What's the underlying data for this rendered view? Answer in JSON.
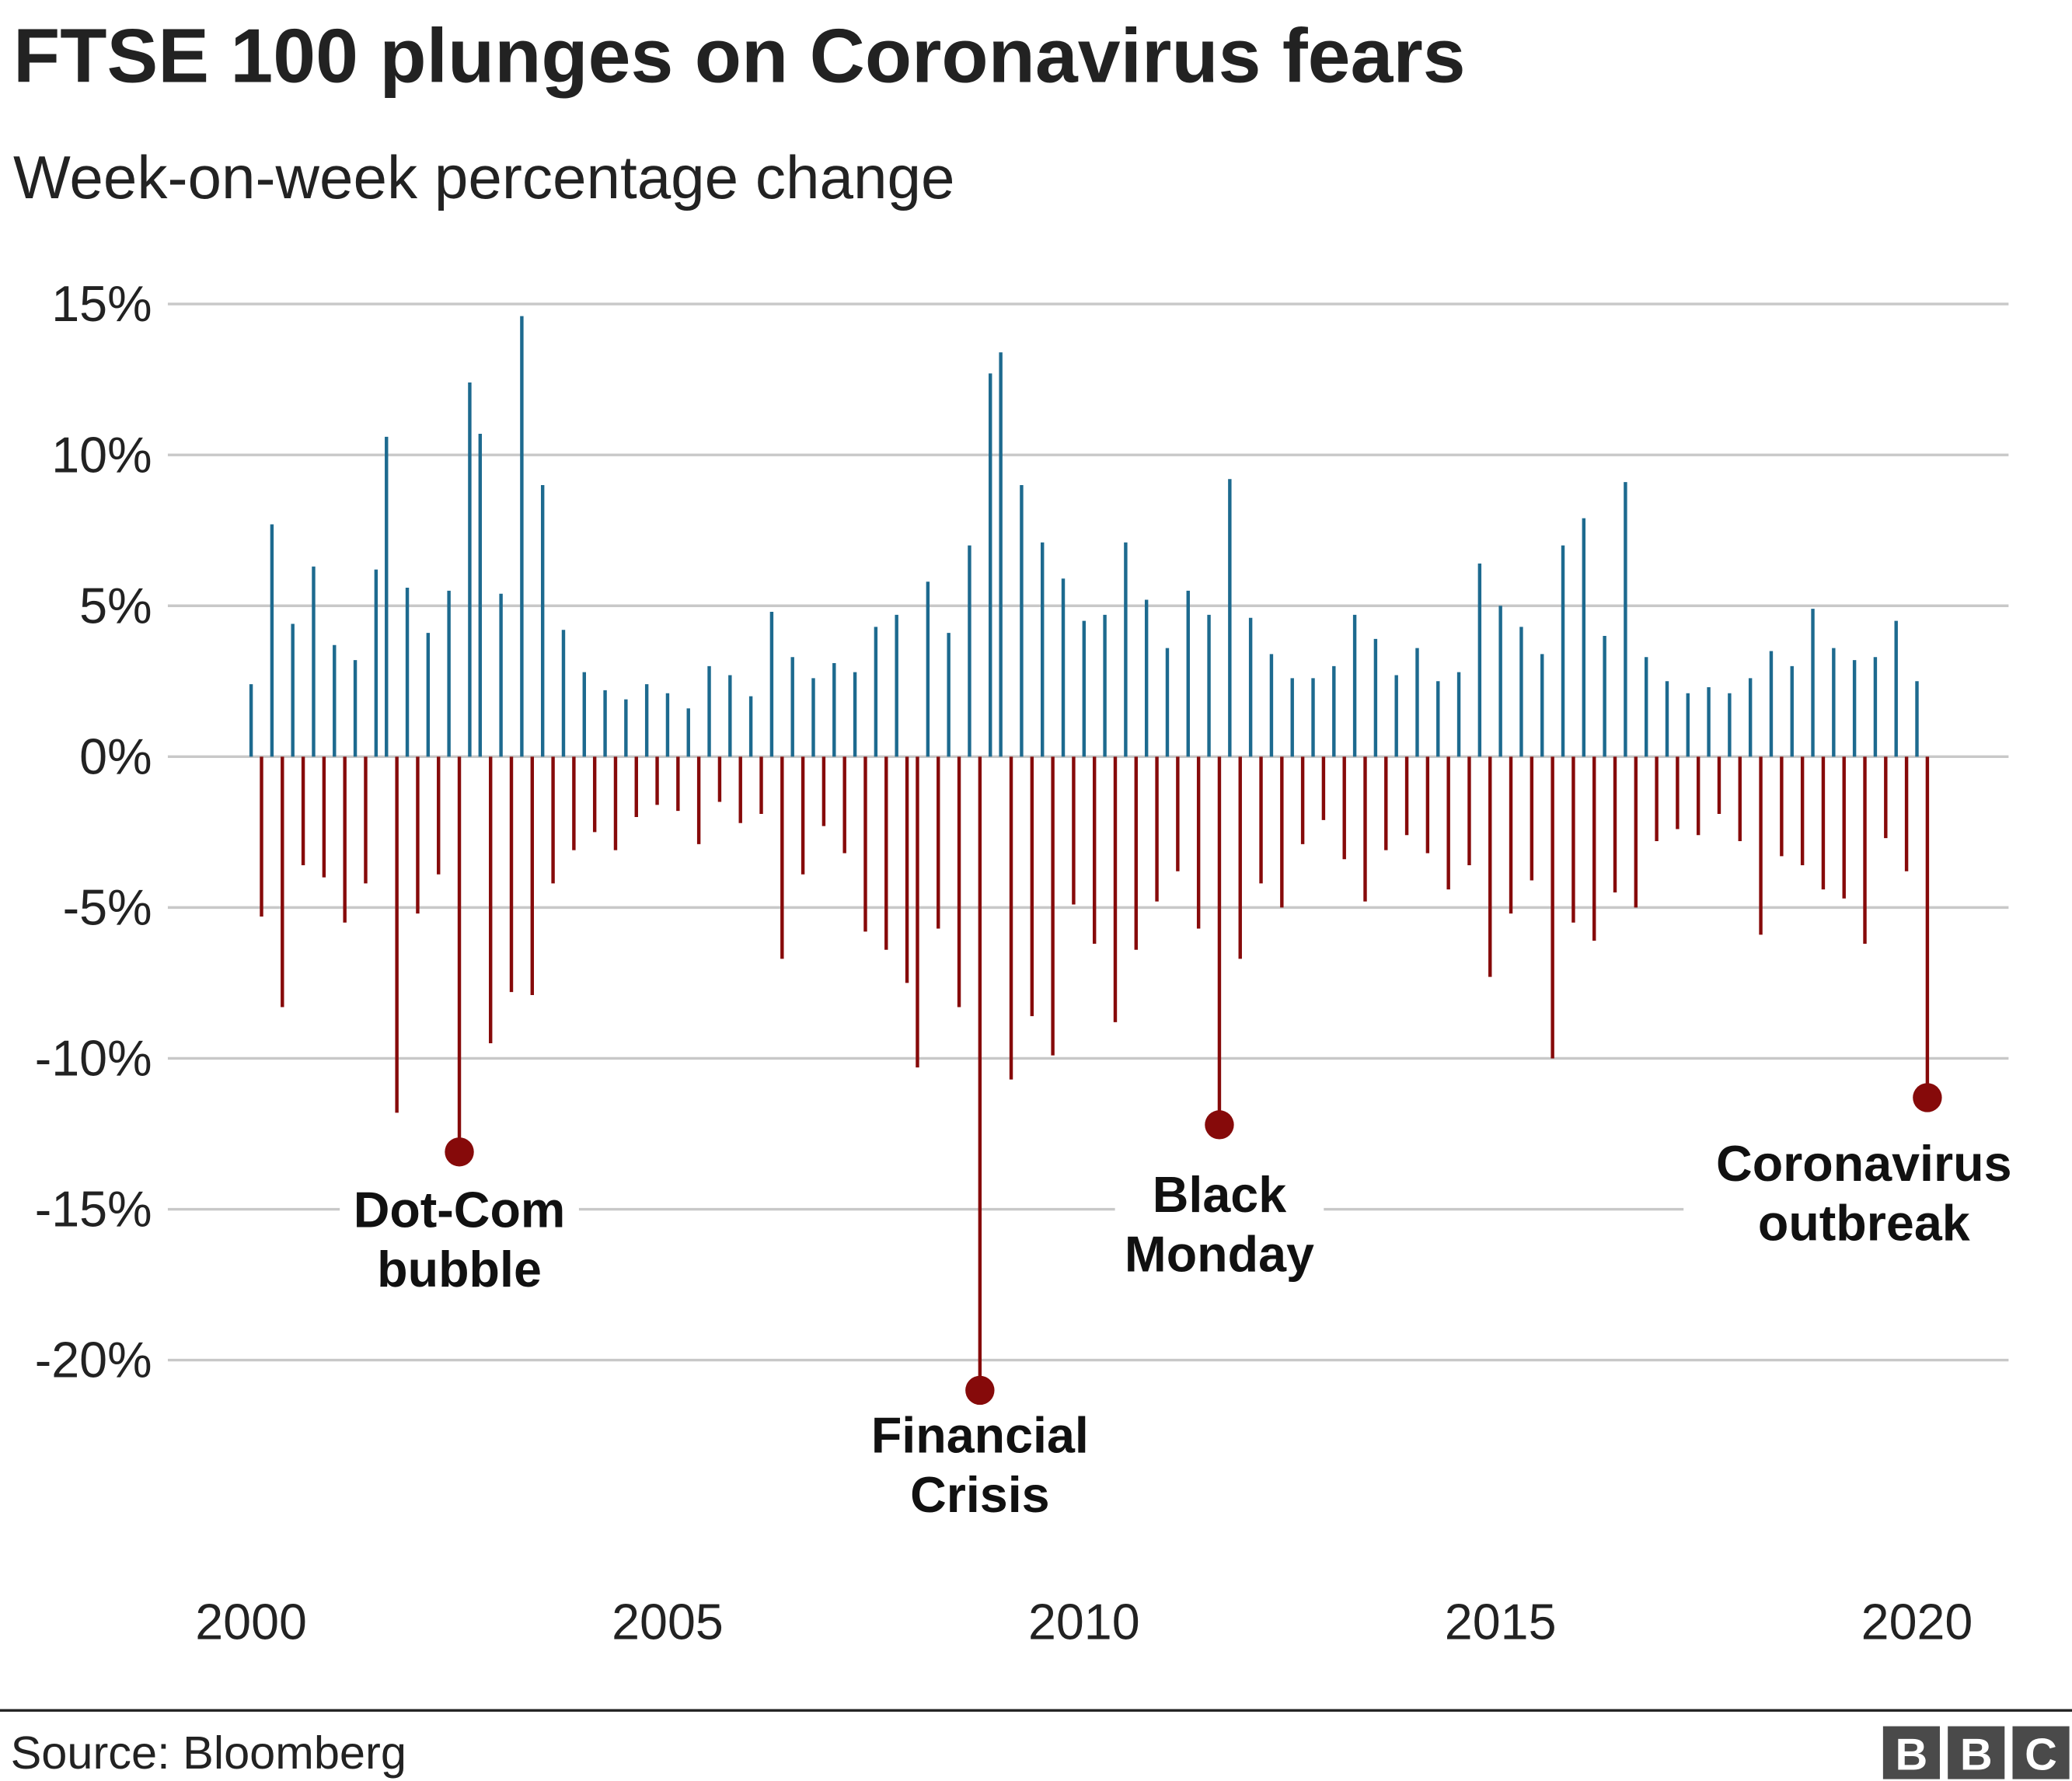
{
  "chart_data": {
    "type": "stem",
    "title": "FTSE 100 plunges on Coronavirus fears",
    "subtitle": "Week-on-week percentage change",
    "source": "Source: Bloomberg",
    "logo": [
      "B",
      "B",
      "C"
    ],
    "positive_color": "#1d6a8f",
    "negative_color": "#860a0a",
    "grid": true,
    "ylim": [
      -20,
      15
    ],
    "yticks": [
      {
        "value": 15,
        "label": "15%"
      },
      {
        "value": 10,
        "label": "10%"
      },
      {
        "value": 5,
        "label": "5%"
      },
      {
        "value": 0,
        "label": "0%"
      },
      {
        "value": -5,
        "label": "-5%"
      },
      {
        "value": -10,
        "label": "-10%"
      },
      {
        "value": -15,
        "label": "-15%"
      },
      {
        "value": -20,
        "label": "-20%"
      }
    ],
    "xlim": [
      1999,
      2021.1
    ],
    "xticks": [
      2000,
      2005,
      2010,
      2015,
      2020
    ],
    "x": [
      2000.0,
      2000.125,
      2000.25,
      2000.375,
      2000.5,
      2000.625,
      2000.75,
      2000.875,
      2001.0,
      2001.125,
      2001.25,
      2001.375,
      2001.5,
      2001.625,
      2001.75,
      2001.875,
      2002.0,
      2002.125,
      2002.25,
      2002.375,
      2002.5,
      2002.625,
      2002.75,
      2002.875,
      2003.0,
      2003.125,
      2003.25,
      2003.375,
      2003.5,
      2003.625,
      2003.75,
      2003.875,
      2004.0,
      2004.125,
      2004.25,
      2004.375,
      2004.5,
      2004.625,
      2004.75,
      2004.875,
      2005.0,
      2005.125,
      2005.25,
      2005.375,
      2005.5,
      2005.625,
      2005.75,
      2005.875,
      2006.0,
      2006.125,
      2006.25,
      2006.375,
      2006.5,
      2006.625,
      2006.75,
      2006.875,
      2007.0,
      2007.125,
      2007.25,
      2007.375,
      2007.5,
      2007.625,
      2007.75,
      2007.875,
      2008.0,
      2008.125,
      2008.25,
      2008.375,
      2008.5,
      2008.625,
      2008.75,
      2008.875,
      2009.0,
      2009.125,
      2009.25,
      2009.375,
      2009.5,
      2009.625,
      2009.75,
      2009.875,
      2010.0,
      2010.125,
      2010.25,
      2010.375,
      2010.5,
      2010.625,
      2010.75,
      2010.875,
      2011.0,
      2011.125,
      2011.25,
      2011.375,
      2011.5,
      2011.625,
      2011.75,
      2011.875,
      2012.0,
      2012.125,
      2012.25,
      2012.375,
      2012.5,
      2012.625,
      2012.75,
      2012.875,
      2013.0,
      2013.125,
      2013.25,
      2013.375,
      2013.5,
      2013.625,
      2013.75,
      2013.875,
      2014.0,
      2014.125,
      2014.25,
      2014.375,
      2014.5,
      2014.625,
      2014.75,
      2014.875,
      2015.0,
      2015.125,
      2015.25,
      2015.375,
      2015.5,
      2015.625,
      2015.75,
      2015.875,
      2016.0,
      2016.125,
      2016.25,
      2016.375,
      2016.5,
      2016.625,
      2016.75,
      2016.875,
      2017.0,
      2017.125,
      2017.25,
      2017.375,
      2017.5,
      2017.625,
      2017.75,
      2017.875,
      2018.0,
      2018.125,
      2018.25,
      2018.375,
      2018.5,
      2018.625,
      2018.75,
      2018.875,
      2019.0,
      2019.125,
      2019.25,
      2019.375,
      2019.5,
      2019.625,
      2019.75,
      2019.875,
      2020.0,
      2020.125
    ],
    "values": [
      2.4,
      -5.3,
      7.7,
      -8.3,
      4.4,
      -3.6,
      6.3,
      -4.0,
      3.7,
      -5.5,
      3.2,
      -4.2,
      6.2,
      10.6,
      -11.8,
      5.6,
      -5.2,
      4.1,
      -3.9,
      5.5,
      -13.1,
      12.4,
      10.7,
      -9.5,
      5.4,
      -7.8,
      14.6,
      -7.9,
      9.0,
      -4.2,
      4.2,
      -3.1,
      2.8,
      -2.5,
      2.2,
      -3.1,
      1.9,
      -2.0,
      2.4,
      -1.6,
      2.1,
      -1.8,
      1.6,
      -2.9,
      3.0,
      -1.5,
      2.7,
      -2.2,
      2.0,
      -1.9,
      4.8,
      -6.7,
      3.3,
      -3.9,
      2.6,
      -2.3,
      3.1,
      -3.2,
      2.8,
      -5.8,
      4.3,
      -6.4,
      4.7,
      -7.5,
      -10.3,
      5.8,
      -5.7,
      4.1,
      -8.3,
      7.0,
      -21.0,
      12.7,
      13.4,
      -10.7,
      9.0,
      -8.6,
      7.1,
      -9.9,
      5.9,
      -4.9,
      4.5,
      -6.2,
      4.7,
      -8.8,
      7.1,
      -6.4,
      5.2,
      -4.8,
      3.6,
      -3.8,
      5.5,
      -5.7,
      4.7,
      -12.2,
      9.2,
      -6.7,
      4.6,
      -4.2,
      3.4,
      -5.0,
      2.6,
      -2.9,
      2.6,
      -2.1,
      3.0,
      -3.4,
      4.7,
      -4.8,
      3.9,
      -3.1,
      2.7,
      -2.6,
      3.6,
      -3.2,
      2.5,
      -4.4,
      2.8,
      -3.6,
      6.4,
      -7.3,
      5.0,
      -5.2,
      4.3,
      -4.1,
      3.4,
      -10.0,
      7.0,
      -5.5,
      7.9,
      -6.1,
      4.0,
      -4.5,
      9.1,
      -5.0,
      3.3,
      -2.8,
      2.5,
      -2.4,
      2.1,
      -2.6,
      2.3,
      -1.9,
      2.1,
      -2.8,
      2.6,
      -5.9,
      3.5,
      -3.3,
      3.0,
      -3.6,
      4.9,
      -4.4,
      3.6,
      -4.7,
      3.2,
      -6.2,
      3.3,
      -2.7,
      4.5,
      -3.8,
      2.5,
      -11.3
    ],
    "annotations": [
      {
        "lines": [
          "Dot-Com",
          "bubble"
        ],
        "x": 2002.5,
        "y": -13.1
      },
      {
        "lines": [
          "Financial",
          "Crisis"
        ],
        "x": 2008.75,
        "y": -21.0
      },
      {
        "lines": [
          "Black",
          "Monday"
        ],
        "x": 2011.625,
        "y": -12.2
      },
      {
        "lines": [
          "Coronavirus",
          "outbreak"
        ],
        "x": 2020.125,
        "y": -11.3
      }
    ]
  }
}
